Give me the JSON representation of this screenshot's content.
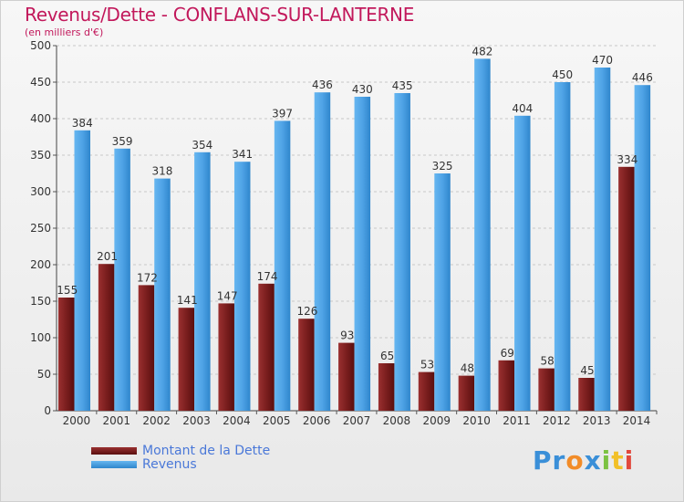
{
  "title": "Revenus/Dette - CONFLANS-SUR-LANTERNE",
  "subtitle": "(en milliers d'€)",
  "legend": {
    "debt_label": "Montant de la Dette",
    "revenue_label": "Revenus"
  },
  "logo": {
    "p1": "Pr",
    "o": "o",
    "x": "x",
    "i1": "i",
    "t": "t",
    "i2": "i"
  },
  "colors": {
    "debt": "#7a1e1e",
    "revenue": "#4fa3e6",
    "title": "#c2185b",
    "legend_text": "#4a78d8"
  },
  "chart_data": {
    "type": "bar",
    "title": "Revenus/Dette - CONFLANS-SUR-LANTERNE",
    "ylabel": "(en milliers d'€)",
    "ylim": [
      0,
      500
    ],
    "yticks": [
      0,
      50,
      100,
      150,
      200,
      250,
      300,
      350,
      400,
      450,
      500
    ],
    "grid": true,
    "legend_position": "bottom-left",
    "categories": [
      "2000",
      "2001",
      "2002",
      "2003",
      "2004",
      "2005",
      "2006",
      "2007",
      "2008",
      "2009",
      "2010",
      "2011",
      "2012",
      "2013",
      "2014"
    ],
    "series": [
      {
        "name": "Montant de la Dette",
        "values": [
          155,
          201,
          172,
          141,
          147,
          174,
          126,
          93,
          65,
          53,
          48,
          69,
          58,
          45,
          334
        ]
      },
      {
        "name": "Revenus",
        "values": [
          384,
          359,
          318,
          354,
          341,
          397,
          436,
          430,
          435,
          325,
          482,
          404,
          450,
          470,
          446
        ]
      }
    ]
  }
}
